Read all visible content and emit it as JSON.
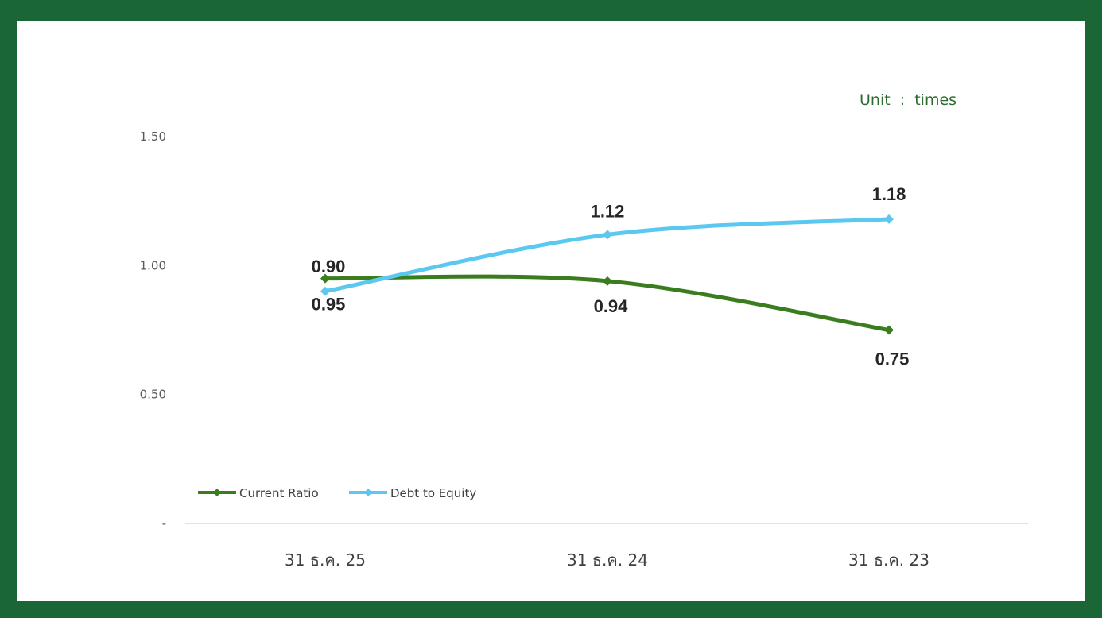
{
  "unit_note": "Unit  :  times",
  "colors": {
    "frame": "#1a6636",
    "current_ratio": "#3a7d1e",
    "debt_to_equity": "#5bc8f0"
  },
  "chart_data": {
    "type": "line",
    "categories": [
      "31 ธ.ค. 25",
      "31 ธ.ค. 24",
      "31 ธ.ค. 23"
    ],
    "series": [
      {
        "name": "Current Ratio",
        "values": [
          0.95,
          0.94,
          0.75
        ],
        "color": "#3a7d1e",
        "data_labels": [
          "0.95",
          "0.94",
          "0.75"
        ]
      },
      {
        "name": "Debt to Equity",
        "values": [
          0.9,
          1.12,
          1.18
        ],
        "color": "#5bc8f0",
        "data_labels": [
          "0.90",
          "1.12",
          "1.18"
        ]
      }
    ],
    "y_ticks": [
      {
        "value": 0,
        "label": "-"
      },
      {
        "value": 0.5,
        "label": "0.50"
      },
      {
        "value": 1.0,
        "label": "1.00"
      },
      {
        "value": 1.5,
        "label": "1.50"
      }
    ],
    "ylim": [
      0,
      1.5
    ],
    "grid": false,
    "legend_position": "bottom-left",
    "smooth": true,
    "marker": "diamond"
  }
}
